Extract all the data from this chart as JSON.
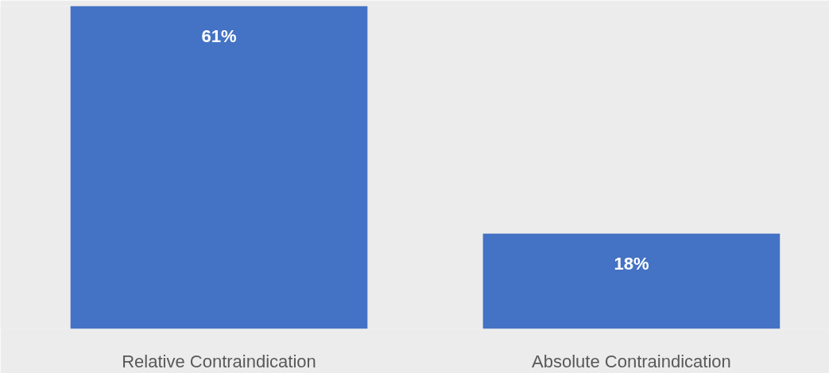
{
  "chart_data": {
    "type": "bar",
    "categories": [
      "Relative Contraindication",
      "Absolute Contraindication"
    ],
    "values": [
      61,
      18
    ],
    "color": "#4472c4",
    "data_labels": true,
    "value_labels": [
      "61%",
      "18%"
    ],
    "grid": false
  }
}
